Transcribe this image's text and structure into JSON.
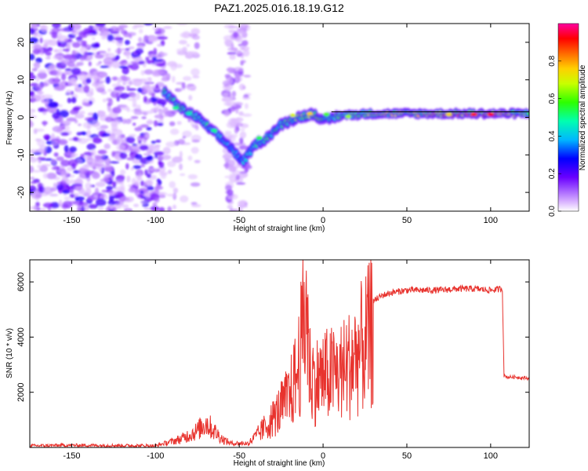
{
  "figure": {
    "title": "PAZ1.2025.016.18.19.G12"
  },
  "chart_data": [
    {
      "type": "heatmap",
      "title": "PAZ1.2025.016.18.19.G12",
      "xlabel": "Height of straight line (km)",
      "ylabel": "Frequency (Hz)",
      "xlim": [
        -175,
        123
      ],
      "ylim": [
        -25,
        25
      ],
      "x_ticks": [
        -150,
        -100,
        -50,
        0,
        50,
        100
      ],
      "y_ticks": [
        -20,
        -10,
        0,
        10,
        20
      ],
      "colorbar": {
        "label": "Normalized spectral amplitude",
        "range": [
          0,
          1
        ],
        "ticks": [
          "0.0",
          "0.2",
          "0.4",
          "0.6",
          "0.8"
        ],
        "colormap": "rainbow"
      },
      "grid": false,
      "ridge": {
        "description_points_x": [
          -95,
          -85,
          -75,
          -65,
          -55,
          -48,
          -40,
          -35,
          -25,
          -15,
          -5,
          0,
          10,
          30,
          60,
          90,
          100,
          123
        ],
        "description_points_y": [
          7,
          2.5,
          0,
          -4,
          -8,
          -12,
          -7,
          -6,
          -2,
          0,
          1,
          -1,
          0.5,
          1,
          1,
          1,
          1,
          1
        ],
        "peak_amplitude": [
          0.55,
          0.6,
          0.55,
          0.5,
          0.45,
          0.45,
          0.5,
          0.55,
          0.55,
          0.65,
          0.7,
          0.6,
          0.6,
          0.7,
          0.75,
          0.85,
          0.95,
          0.6
        ]
      }
    },
    {
      "type": "line",
      "title": "",
      "xlabel": "Height of straight line (km)",
      "ylabel": "SNR (10 * v/v)",
      "xlim": [
        -175,
        123
      ],
      "ylim": [
        0,
        6800
      ],
      "x_ticks": [
        -150,
        -100,
        -50,
        0,
        50,
        100
      ],
      "y_ticks": [
        2000,
        4000,
        6000
      ],
      "color": "#e8332e",
      "grid": false,
      "series": [
        {
          "x": [
            -175,
            -150,
            -120,
            -100,
            -85,
            -75,
            -70,
            -65,
            -60,
            -55,
            -50,
            -45,
            -40,
            -35,
            -30,
            -25,
            -20,
            -15,
            -12,
            -10,
            -8,
            -5,
            0,
            5,
            10,
            15,
            20,
            25,
            30,
            35,
            40,
            50,
            60,
            70,
            80,
            90,
            100,
            107,
            108,
            110,
            115,
            123
          ],
          "y": [
            60,
            80,
            70,
            60,
            300,
            600,
            900,
            600,
            300,
            150,
            150,
            150,
            500,
            900,
            1300,
            1800,
            2300,
            3500,
            5200,
            6700,
            3500,
            3000,
            3200,
            3300,
            3400,
            3700,
            4200,
            4700,
            5300,
            5500,
            5600,
            5700,
            5700,
            5700,
            5750,
            5750,
            5700,
            5750,
            2600,
            2550,
            2550,
            2500
          ]
        }
      ]
    }
  ]
}
